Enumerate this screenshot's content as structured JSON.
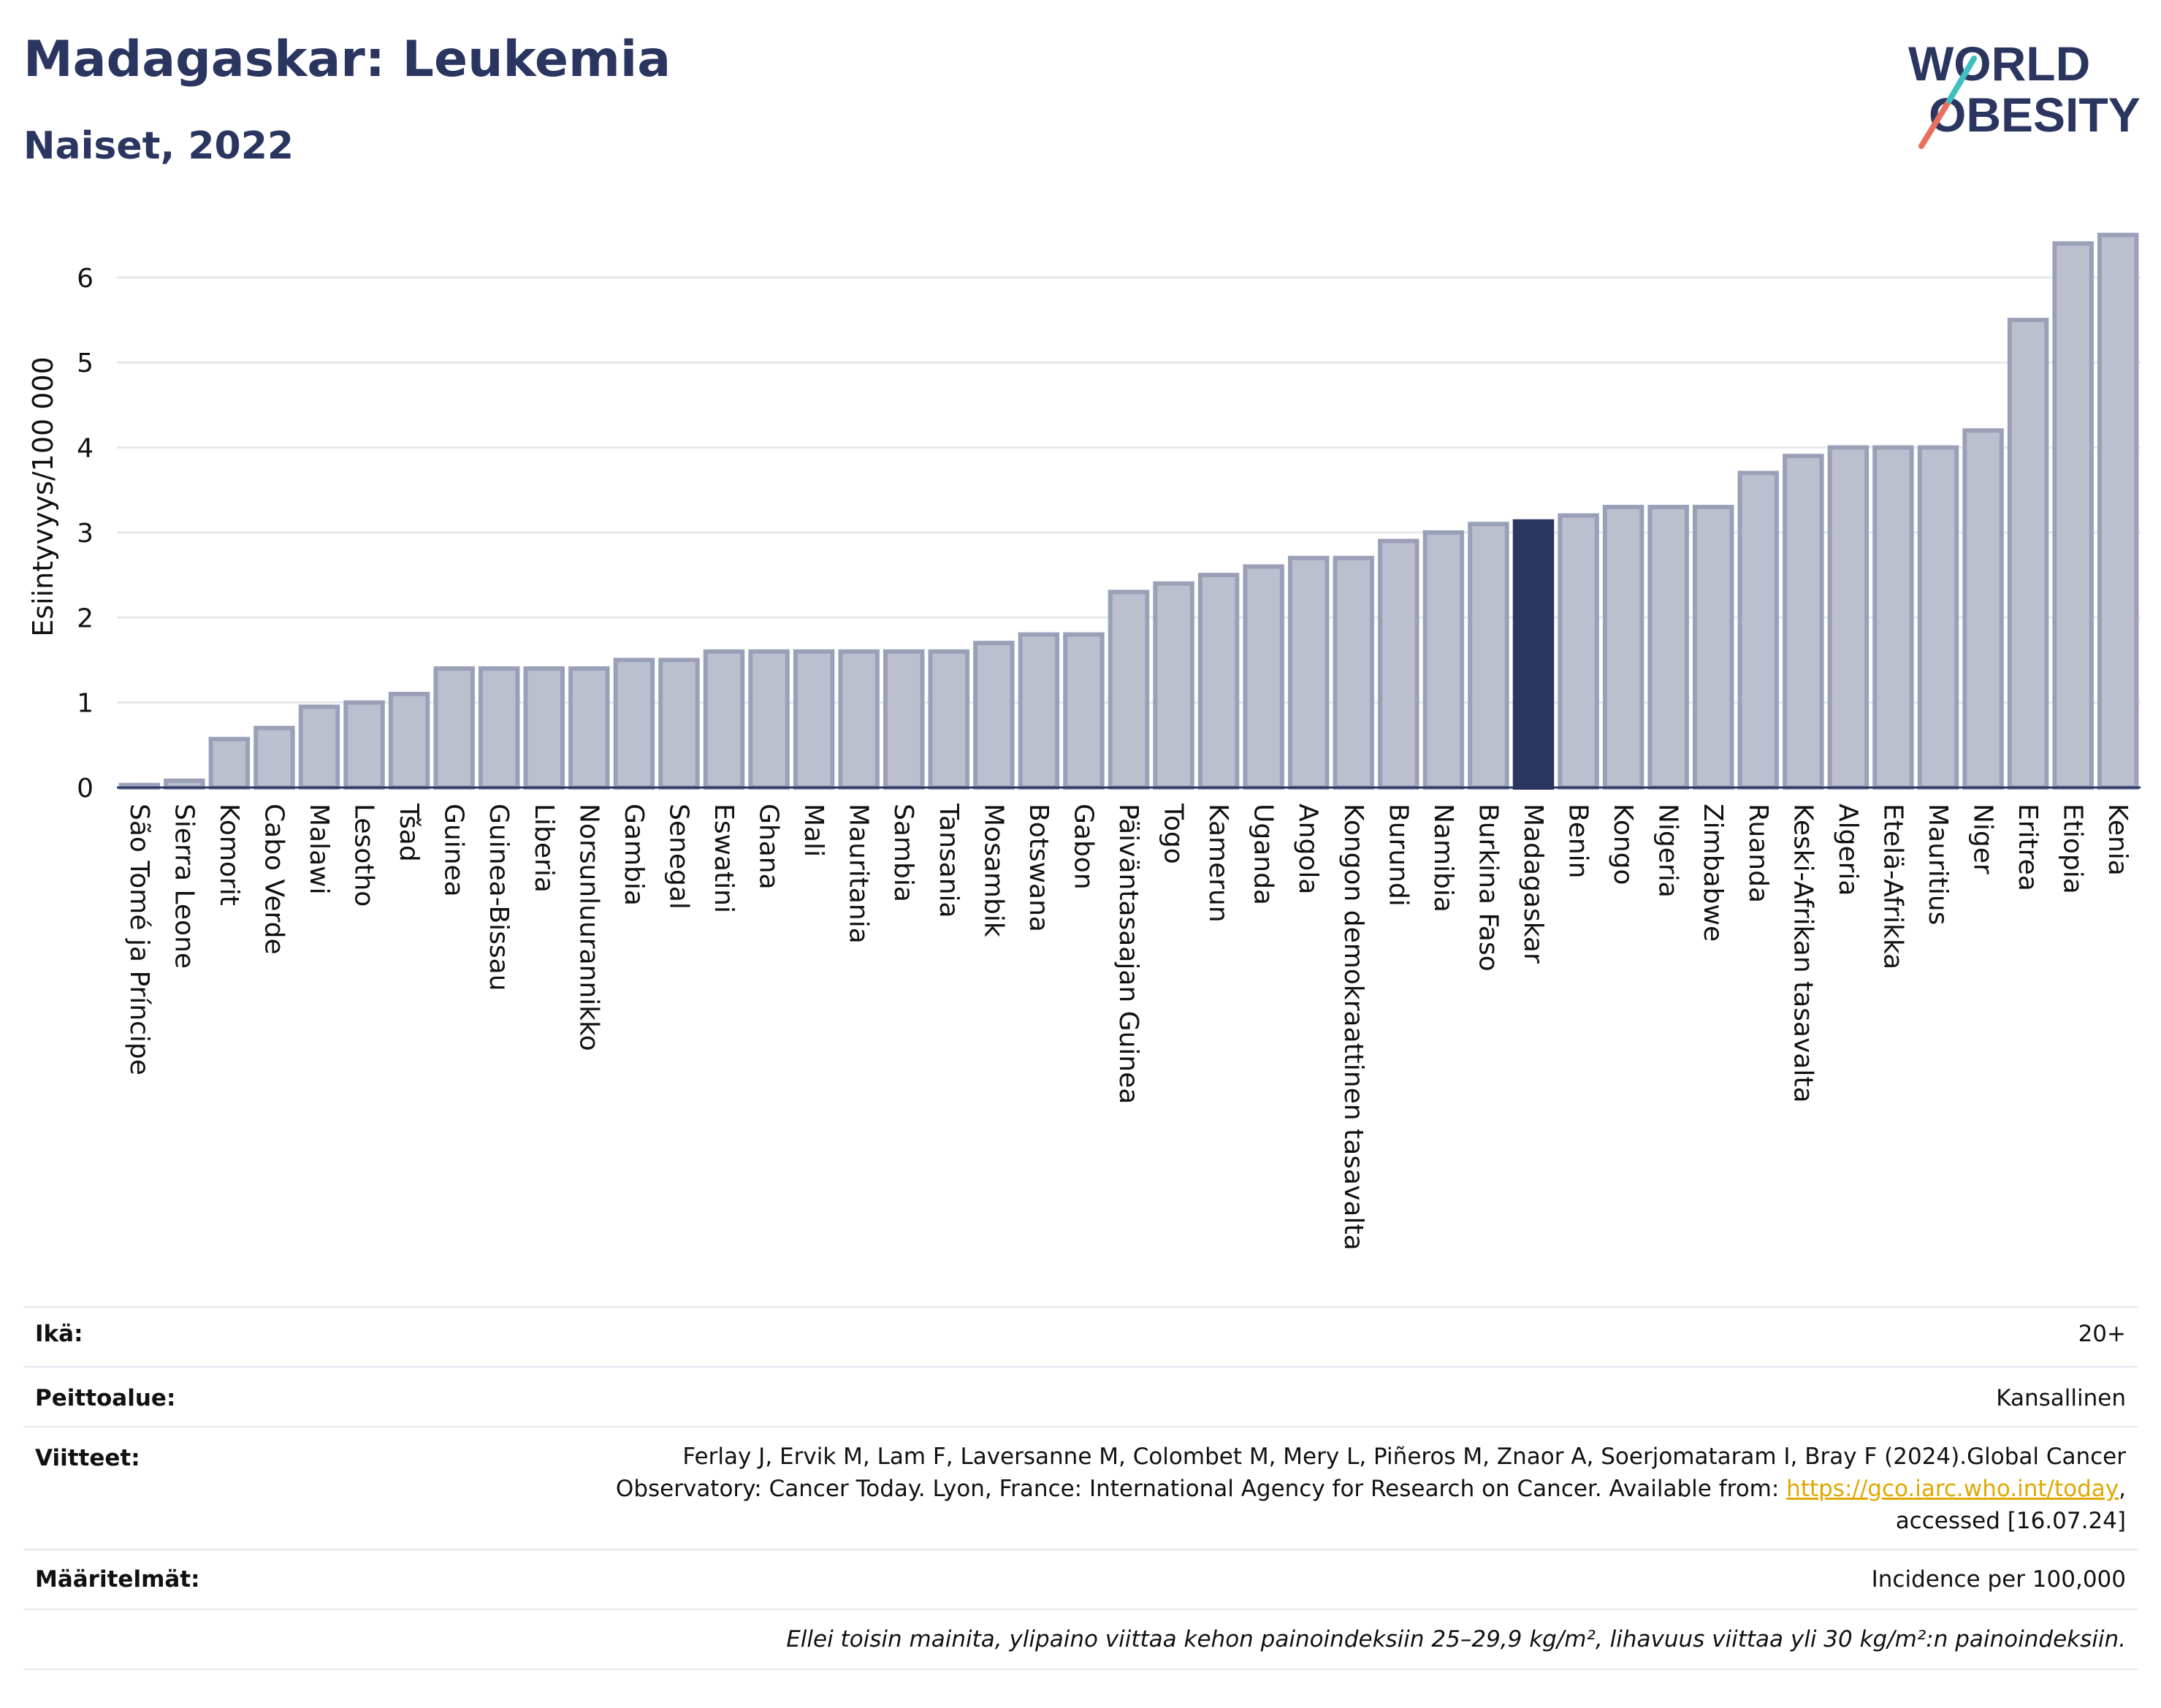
{
  "header": {
    "title": "Madagaskar: Leukemia",
    "subtitle": "Naiset, 2022"
  },
  "logo": {
    "line1": "WORLD",
    "line2": "OBESITY"
  },
  "colors": {
    "bar": "#bcc0ce",
    "bar_stroke": "#9aa0b8",
    "highlight": "#2a3560",
    "grid": "#e6e8ee",
    "text": "#2a3560",
    "link": "#e0a800"
  },
  "chart_data": {
    "type": "bar",
    "ylabel": "Esiintyvyys/100 000",
    "ylim": [
      0,
      6.6
    ],
    "yticks": [
      0,
      1,
      2,
      3,
      4,
      5,
      6
    ],
    "grid": true,
    "highlight": "Madagaskar",
    "categories": [
      "São Tomé ja Príncipe",
      "Sierra Leone",
      "Komorit",
      "Cabo Verde",
      "Malawi",
      "Lesotho",
      "Tšad",
      "Guinea",
      "Guinea-Bissau",
      "Liberia",
      "Norsunluurannikko",
      "Gambia",
      "Senegal",
      "Eswatini",
      "Ghana",
      "Mali",
      "Mauritania",
      "Sambia",
      "Tansania",
      "Mosambik",
      "Botswana",
      "Gabon",
      "Päiväntasaajan Guinea",
      "Togo",
      "Kamerun",
      "Uganda",
      "Angola",
      "Kongon demokraattinen tasavalta",
      "Burundi",
      "Namibia",
      "Burkina Faso",
      "Madagaskar",
      "Benin",
      "Kongo",
      "Nigeria",
      "Zimbabwe",
      "Ruanda",
      "Keski-Afrikan tasavalta",
      "Algeria",
      "Etelä-Afrikka",
      "Mauritius",
      "Niger",
      "Eritrea",
      "Etiopia",
      "Kenia"
    ],
    "values": [
      0.03,
      0.08,
      0.57,
      0.7,
      0.95,
      1.0,
      1.1,
      1.4,
      1.4,
      1.4,
      1.4,
      1.5,
      1.5,
      1.6,
      1.6,
      1.6,
      1.6,
      1.6,
      1.6,
      1.7,
      1.8,
      1.8,
      2.3,
      2.4,
      2.5,
      2.6,
      2.7,
      2.7,
      2.9,
      3.0,
      3.1,
      3.13,
      3.2,
      3.3,
      3.3,
      3.3,
      3.7,
      3.9,
      4.0,
      4.0,
      4.0,
      4.2,
      5.5,
      6.4,
      6.5
    ]
  },
  "info": {
    "age_label": "Ikä:",
    "age_value": "20+",
    "coverage_label": "Peittoalue:",
    "coverage_value": "Kansallinen",
    "refs_label": "Viitteet:",
    "refs_line1": "Ferlay J, Ervik M, Lam F, Laversanne M, Colombet M, Mery L, Piñeros M, Znaor A, Soerjomataram I, Bray F (2024).Global Cancer",
    "refs_line2_text": "Observatory: Cancer Today. Lyon, France: International Agency for Research on Cancer. Available from: ",
    "refs_link": "https://gco.iarc.who.int/today",
    "refs_line2_tail": ",",
    "refs_line3": "accessed [16.07.24]",
    "defs_label": "Määritelmät:",
    "defs_value": "Incidence per 100,000",
    "note": "Ellei toisin mainita, ylipaino viittaa kehon painoindeksiin 25–29,9 kg/m², lihavuus viittaa yli 30 kg/m²:n painoindeksiin."
  }
}
